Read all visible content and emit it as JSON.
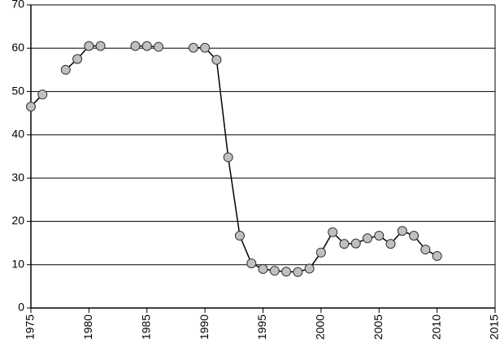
{
  "chart_data": {
    "type": "line",
    "x": [
      1975,
      1976,
      1977,
      1978,
      1979,
      1980,
      1981,
      1982,
      1983,
      1984,
      1985,
      1986,
      1987,
      1988,
      1989,
      1990,
      1991,
      1992,
      1993,
      1994,
      1995,
      1996,
      1997,
      1998,
      1999,
      2000,
      2001,
      2002,
      2003,
      2004,
      2005,
      2006,
      2007,
      2008,
      2009,
      2010
    ],
    "values": [
      46.5,
      49.3,
      null,
      55,
      57.5,
      60.5,
      60.5,
      null,
      null,
      60.5,
      60.5,
      60.3,
      null,
      null,
      60.1,
      60.1,
      57.3,
      34.8,
      16.7,
      10.3,
      9.0,
      8.6,
      8.4,
      8.3,
      9.1,
      12.8,
      17.5,
      14.8,
      14.9,
      16.1,
      16.7,
      14.8,
      17.8,
      16.7,
      13.5,
      12.0
    ],
    "color": "#c0c0c0",
    "xlim": [
      1975,
      2015
    ],
    "xticks": [
      1975,
      1980,
      1985,
      1990,
      1995,
      2000,
      2005,
      2010,
      2015
    ],
    "ylim": [
      0,
      70
    ],
    "yticks": [
      0,
      10,
      20,
      30,
      40,
      50,
      60,
      70
    ],
    "grid": true
  }
}
